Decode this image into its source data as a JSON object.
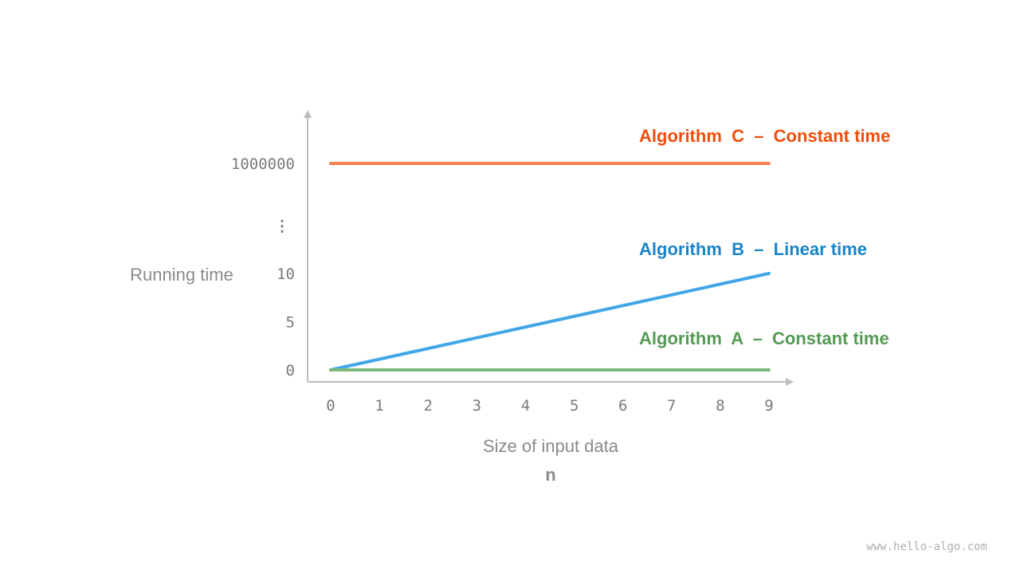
{
  "chart_data": {
    "type": "line",
    "xlabel": "Size of input data",
    "xlabel_symbol": "n",
    "ylabel": "Running time",
    "x_ticks": [
      "0",
      "1",
      "2",
      "3",
      "4",
      "5",
      "6",
      "7",
      "8",
      "9"
    ],
    "y_ticks": [
      "0",
      "5",
      "10",
      "1000000"
    ],
    "y_axis_break": "⋮",
    "xlim": [
      0,
      9
    ],
    "grid": false,
    "series": [
      {
        "name": "Algorithm  C  –  Constant time",
        "x": [
          0,
          9
        ],
        "y": [
          1000000,
          1000000
        ],
        "line_color": "#F5814F",
        "label_color": "#F04E0A"
      },
      {
        "name": "Algorithm  B  –  Linear time",
        "x": [
          0,
          9
        ],
        "y": [
          0,
          10
        ],
        "line_color": "#41A6E8",
        "label_color": "#1A84C8"
      },
      {
        "name": "Algorithm  A  –  Constant time",
        "x": [
          0,
          9
        ],
        "y": [
          0,
          0
        ],
        "line_color": "#7CB87A",
        "label_color": "#559A55"
      }
    ]
  },
  "watermark": "www.hello-algo.com"
}
